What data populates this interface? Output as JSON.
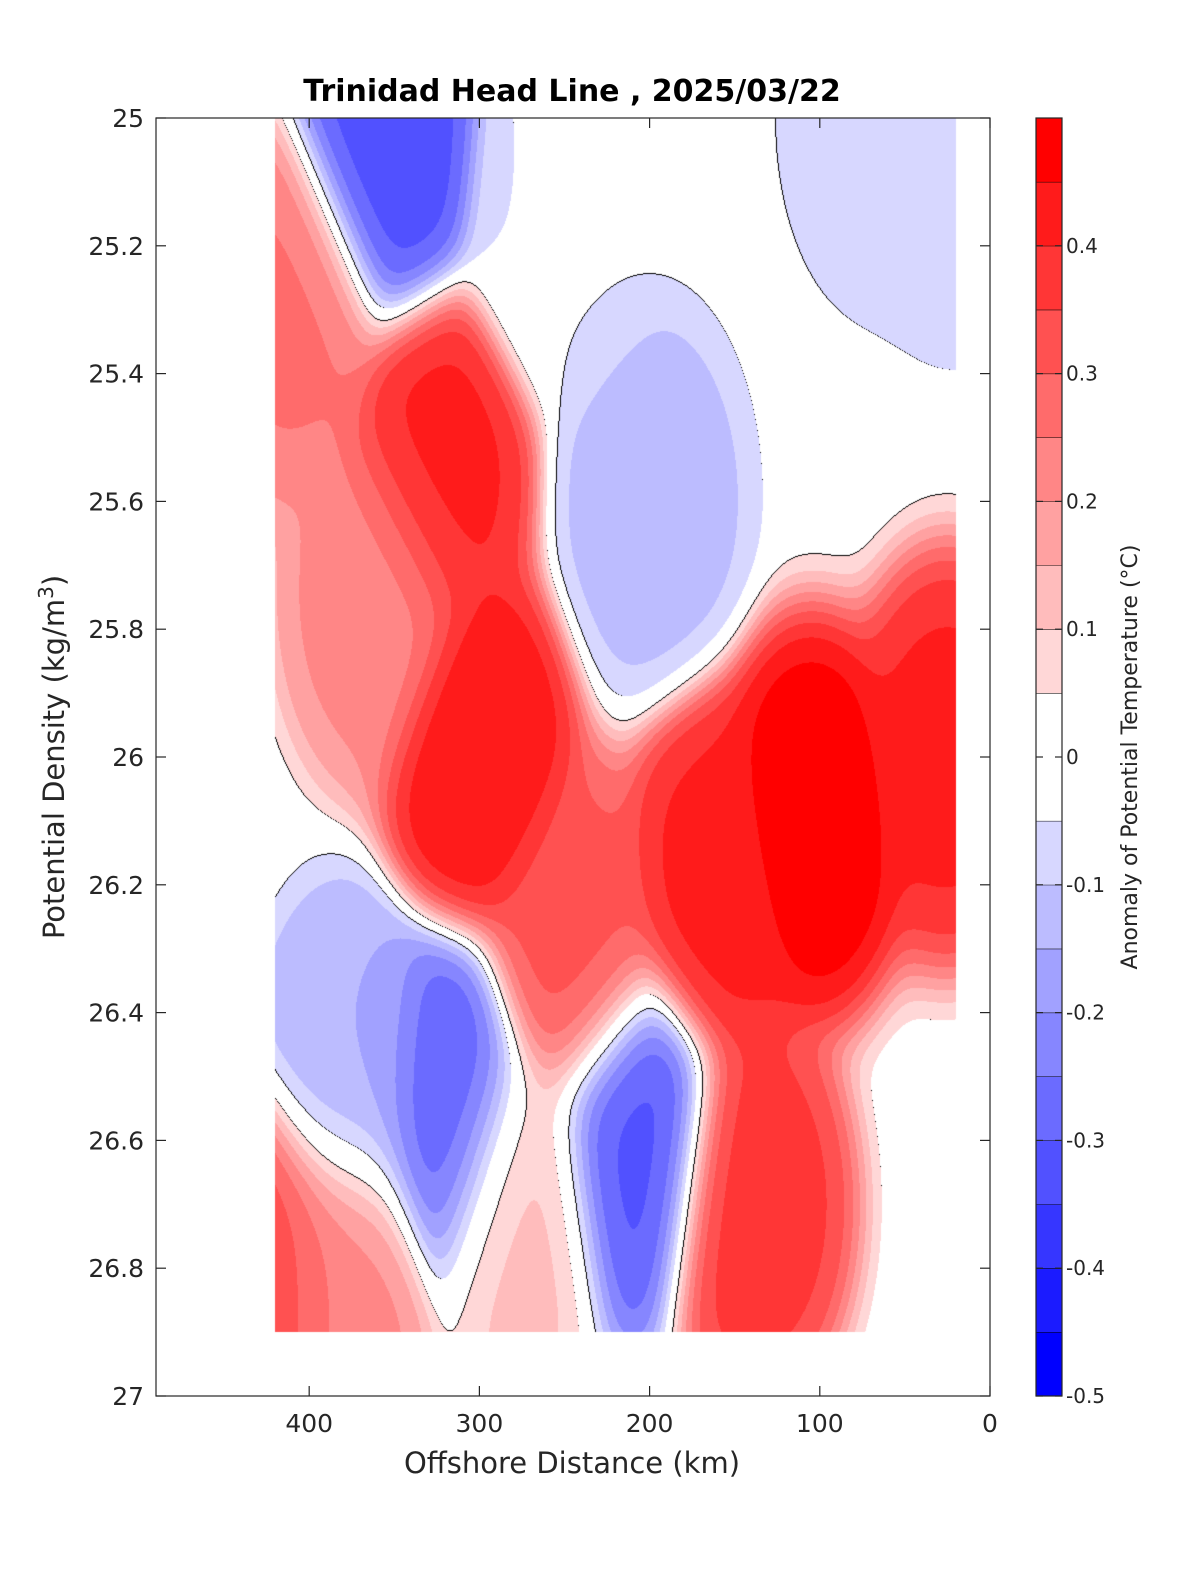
{
  "chart_data": {
    "type": "heatmap",
    "subtype": "filled-contour",
    "title": "Trinidad Head Line , 2025/03/22",
    "xlabel": "Offshore Distance (km)",
    "ylabel_main": "Potential Density (kg/m",
    "ylabel_sup": "3",
    "ylabel_end": ")",
    "colorbar_label": "Anomaly of Potential Temperature (°C)",
    "x_range": [
      490,
      0
    ],
    "x_reversed": true,
    "y_range": [
      25,
      27
    ],
    "y_reversed": true,
    "x_ticks": [
      400,
      300,
      200,
      100,
      0
    ],
    "x_tick_labels": [
      "400",
      "300",
      "200",
      "100",
      "0"
    ],
    "y_ticks": [
      25,
      25.2,
      25.4,
      25.6,
      25.8,
      26,
      26.2,
      26.4,
      26.6,
      26.8,
      27
    ],
    "y_tick_labels": [
      "25",
      "25.2",
      "25.4",
      "25.6",
      "25.8",
      "26",
      "26.2",
      "26.4",
      "26.6",
      "26.8",
      "27"
    ],
    "colorbar_range": [
      -0.5,
      0.5
    ],
    "colorbar_ticks": [
      0.4,
      0.3,
      0.2,
      0.1,
      0,
      -0.1,
      -0.2,
      -0.3,
      -0.4,
      -0.5
    ],
    "colorbar_tick_labels": [
      "0.4",
      "0.3",
      "0.2",
      "0.1",
      "0",
      "-0.1",
      "-0.2",
      "-0.3",
      "-0.4",
      "-0.5"
    ],
    "contour_levels": [
      -0.5,
      -0.45,
      -0.4,
      -0.35,
      -0.3,
      -0.25,
      -0.2,
      -0.15,
      -0.1,
      -0.05,
      0.05,
      0.1,
      0.15,
      0.2,
      0.25,
      0.3,
      0.35,
      0.4,
      0.45,
      0.5
    ],
    "zero_contour_color": "#000000",
    "grid": false,
    "data_extent": {
      "x": [
        420,
        20
      ],
      "y": [
        25,
        26.9
      ]
    },
    "features": [
      {
        "x": 300,
        "y": 26.0,
        "peak": 0.45
      },
      {
        "x": 325,
        "y": 25.55,
        "peak": 0.42
      },
      {
        "x": 105,
        "y": 26.1,
        "peak": 0.5
      },
      {
        "x": 160,
        "y": 26.2,
        "peak": 0.42
      },
      {
        "x": 25,
        "y": 26.0,
        "peak": 0.42
      },
      {
        "x": 140,
        "y": 26.7,
        "peak": 0.38
      },
      {
        "x": 245,
        "y": 26.3,
        "peak": 0.32
      },
      {
        "x": 410,
        "y": 25.3,
        "peak": 0.26
      },
      {
        "x": 420,
        "y": 26.8,
        "peak": 0.35
      },
      {
        "x": 380,
        "y": 26.8,
        "peak": 0.22
      },
      {
        "x": 360,
        "y": 25.75,
        "peak": 0.22
      },
      {
        "x": 275,
        "y": 26.7,
        "peak": 0.12
      },
      {
        "x": 355,
        "y": 25.05,
        "peak": -0.33
      },
      {
        "x": 318,
        "y": 26.55,
        "peak": -0.3
      },
      {
        "x": 210,
        "y": 26.6,
        "peak": -0.32
      },
      {
        "x": 200,
        "y": 25.6,
        "peak": -0.12
      },
      {
        "x": 375,
        "y": 26.5,
        "peak": -0.15
      },
      {
        "x": 65,
        "y": 25.0,
        "peak": -0.08
      },
      {
        "x": 20,
        "y": 25.05,
        "peak": -0.1
      },
      {
        "x": 255,
        "y": 25.15,
        "peak": -0.05
      }
    ]
  }
}
